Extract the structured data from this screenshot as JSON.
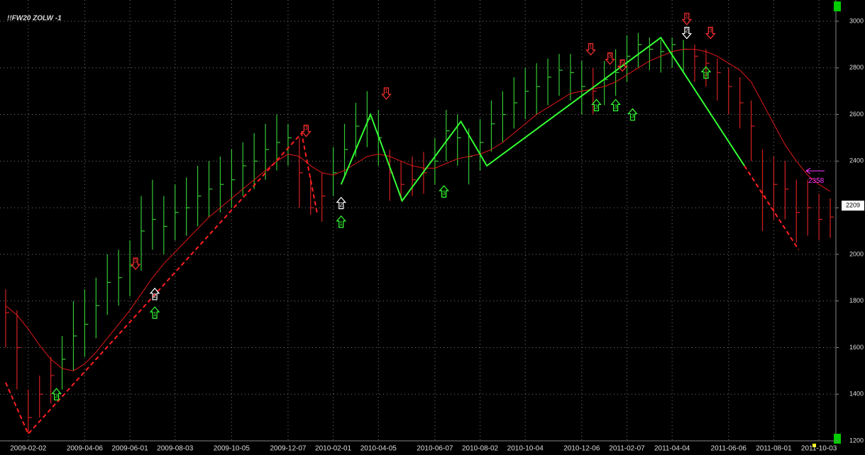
{
  "chart_data": {
    "type": "ohlc",
    "title": "!!FW20 ZOLW -1",
    "categories": [
      null,
      null,
      "2009-02-02",
      null,
      null,
      null,
      null,
      "2009-04-06",
      null,
      null,
      null,
      "2009-06-01",
      null,
      null,
      null,
      "2009-08-03",
      null,
      null,
      null,
      null,
      "2009-10-05",
      null,
      null,
      null,
      null,
      "2009-12-07",
      null,
      null,
      null,
      "2010-02-01",
      null,
      null,
      null,
      "2010-04-05",
      null,
      null,
      null,
      null,
      "2010-06-07",
      null,
      null,
      null,
      "2010-08-02",
      null,
      null,
      null,
      "2010-10-04",
      null,
      null,
      null,
      null,
      "2010-12-06",
      null,
      null,
      null,
      "2011-02-07",
      null,
      null,
      null,
      "2011-04-04",
      null,
      null,
      null,
      null,
      "2011-06-06",
      null,
      null,
      null,
      "2011-08-01",
      null,
      null,
      null,
      "2011-10-03",
      null
    ],
    "high": [
      1850,
      1760,
      1420,
      1480,
      1560,
      1650,
      1800,
      1850,
      1900,
      2000,
      2020,
      2060,
      2250,
      2320,
      2250,
      2300,
      2330,
      2380,
      2400,
      2420,
      2450,
      2480,
      2520,
      2560,
      2600,
      2560,
      2500,
      2330,
      2350,
      2460,
      2560,
      2650,
      2700,
      2620,
      2450,
      2400,
      2420,
      2440,
      2500,
      2620,
      2600,
      2540,
      2580,
      2660,
      2700,
      2760,
      2800,
      2820,
      2840,
      2860,
      2860,
      2830,
      2800,
      2830,
      2880,
      2940,
      2950,
      2930,
      2920,
      2930,
      2920,
      2900,
      2880,
      2840,
      2800,
      2760,
      2660,
      2450,
      2420,
      2400,
      2320,
      2320,
      2260,
      2240
    ],
    "low": [
      1600,
      1420,
      1230,
      1300,
      1360,
      1420,
      1500,
      1560,
      1640,
      1740,
      1780,
      1820,
      1930,
      2020,
      2000,
      2060,
      2080,
      2120,
      2160,
      2180,
      2200,
      2250,
      2280,
      2320,
      2360,
      2380,
      2200,
      2170,
      2140,
      2250,
      2330,
      2420,
      2460,
      2380,
      2230,
      2230,
      2250,
      2260,
      2300,
      2400,
      2380,
      2300,
      2360,
      2440,
      2480,
      2540,
      2580,
      2600,
      2640,
      2680,
      2660,
      2600,
      2600,
      2640,
      2680,
      2740,
      2800,
      2790,
      2780,
      2800,
      2780,
      2740,
      2720,
      2660,
      2600,
      2540,
      2400,
      2100,
      2150,
      2150,
      2050,
      2080,
      2060,
      2070
    ],
    "close": [
      1750,
      1600,
      1300,
      1400,
      1480,
      1550,
      1650,
      1700,
      1780,
      1880,
      1900,
      1950,
      2100,
      2150,
      2120,
      2180,
      2200,
      2250,
      2280,
      2300,
      2320,
      2380,
      2400,
      2450,
      2480,
      2500,
      2350,
      2200,
      2250,
      2350,
      2450,
      2550,
      2580,
      2500,
      2350,
      2300,
      2320,
      2350,
      2400,
      2530,
      2500,
      2420,
      2480,
      2560,
      2600,
      2650,
      2700,
      2720,
      2760,
      2790,
      2780,
      2720,
      2700,
      2750,
      2780,
      2850,
      2900,
      2880,
      2870,
      2900,
      2880,
      2850,
      2820,
      2780,
      2720,
      2650,
      2550,
      2250,
      2300,
      2280,
      2180,
      2200,
      2150,
      2160
    ],
    "ma": {
      "color": "#e01818",
      "values": [
        1780,
        1740,
        1680,
        1610,
        1550,
        1510,
        1500,
        1530,
        1580,
        1640,
        1700,
        1760,
        1830,
        1900,
        1960,
        2010,
        2060,
        2110,
        2160,
        2200,
        2240,
        2280,
        2320,
        2360,
        2400,
        2430,
        2420,
        2380,
        2350,
        2340,
        2360,
        2390,
        2420,
        2430,
        2420,
        2400,
        2380,
        2370,
        2370,
        2390,
        2410,
        2420,
        2430,
        2450,
        2480,
        2520,
        2560,
        2600,
        2630,
        2660,
        2690,
        2700,
        2710,
        2720,
        2740,
        2770,
        2800,
        2830,
        2850,
        2870,
        2880,
        2880,
        2870,
        2850,
        2820,
        2790,
        2740,
        2650,
        2560,
        2470,
        2400,
        2340,
        2300,
        2270
      ]
    },
    "up_color": "#33c933",
    "down_color": "#d42020",
    "zigzag": [
      {
        "color": "#ff2020",
        "dashed": true,
        "x": [
          0,
          2,
          26.2,
          27.6
        ],
        "y": [
          1450,
          1230,
          2520,
          2170
        ]
      },
      {
        "color": "#33ff33",
        "dashed": false,
        "x": [
          29.7,
          32.3,
          35.1,
          40.3,
          42.6,
          58,
          65.4
        ],
        "y": [
          2300,
          2600,
          2230,
          2570,
          2380,
          2930,
          2380
        ]
      },
      {
        "color": "#ff2020",
        "dashed": true,
        "x": [
          65.4,
          70.2
        ],
        "y": [
          2380,
          2020
        ]
      }
    ],
    "signals": [
      {
        "x": 4.5,
        "y": 1400,
        "dir": "up",
        "color": "#33ff33",
        "text": "3"
      },
      {
        "x": 11.5,
        "y": 1960,
        "dir": "down",
        "color": "#ff3030",
        "text": "3"
      },
      {
        "x": 13.2,
        "y": 1830,
        "dir": "up",
        "color": "#ffffff",
        "text": "2"
      },
      {
        "x": 13.2,
        "y": 1750,
        "dir": "up",
        "color": "#33ff33",
        "text": "1"
      },
      {
        "x": 26.6,
        "y": 2530,
        "dir": "down",
        "color": "#ff3030",
        "text": "3"
      },
      {
        "x": 29.7,
        "y": 2220,
        "dir": "up",
        "color": "#ffffff",
        "text": "2"
      },
      {
        "x": 29.7,
        "y": 2140,
        "dir": "up",
        "color": "#33ff33",
        "text": "1"
      },
      {
        "x": 33.7,
        "y": 2690,
        "dir": "down",
        "color": "#ff3030",
        "text": "1"
      },
      {
        "x": 38.8,
        "y": 2270,
        "dir": "up",
        "color": "#33ff33",
        "text": "3"
      },
      {
        "x": 51.8,
        "y": 2880,
        "dir": "down",
        "color": "#ff3030",
        "text": "1"
      },
      {
        "x": 52.3,
        "y": 2640,
        "dir": "up",
        "color": "#33ff33",
        "text": "3"
      },
      {
        "x": 53.5,
        "y": 2840,
        "dir": "down",
        "color": "#ff3030",
        "text": "3"
      },
      {
        "x": 54.6,
        "y": 2810,
        "dir": "down",
        "color": "#ff3030",
        "text": "5"
      },
      {
        "x": 54.0,
        "y": 2640,
        "dir": "up",
        "color": "#33ff33",
        "text": "3"
      },
      {
        "x": 55.5,
        "y": 2600,
        "dir": "up",
        "color": "#33ff33",
        "text": "3"
      },
      {
        "x": 60.3,
        "y": 3010,
        "dir": "down",
        "color": "#ff3030",
        "text": "1"
      },
      {
        "x": 60.3,
        "y": 2950,
        "dir": "down",
        "color": "#ffffff",
        "text": "2"
      },
      {
        "x": 62.4,
        "y": 2950,
        "dir": "down",
        "color": "#ff3030",
        "text": "3"
      },
      {
        "x": 62.0,
        "y": 2780,
        "dir": "up",
        "color": "#33ff33",
        "text": "3"
      }
    ],
    "target": {
      "value": 2358,
      "label": "2358",
      "color": "#ff33ff"
    },
    "last_price": {
      "value": 2209,
      "label": "2209"
    },
    "ylim": [
      1200,
      3000
    ],
    "yticks": [
      1200,
      1400,
      1600,
      1800,
      2000,
      2200,
      2400,
      2600,
      2800,
      3000
    ],
    "grid": true
  }
}
